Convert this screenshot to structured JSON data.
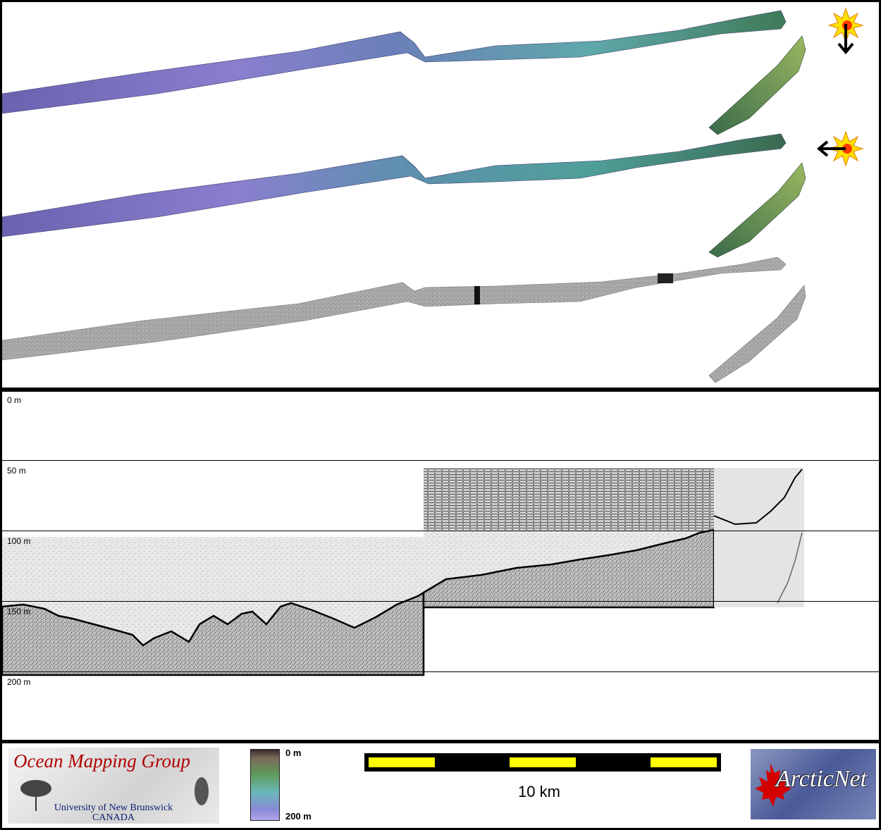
{
  "profile": {
    "depth_labels": [
      "0 m",
      "50 m",
      "100 m",
      "150 m",
      "200 m"
    ]
  },
  "legend": {
    "colorbar_top": "0 m",
    "colorbar_bottom": "200 m"
  },
  "scale": {
    "label": "10 km"
  },
  "logos": {
    "omg_title": "Ocean Mapping Group",
    "omg_university": "University of New Brunswick",
    "omg_country": "CANADA",
    "arcticnet": "ArcticNet"
  },
  "icons": {
    "sun_illumination_north": "sun-arrow-down-icon",
    "sun_illumination_east": "sun-arrow-left-icon"
  },
  "colors": {
    "scale_fill": "#ffff00",
    "omg_title": "#b00000"
  }
}
